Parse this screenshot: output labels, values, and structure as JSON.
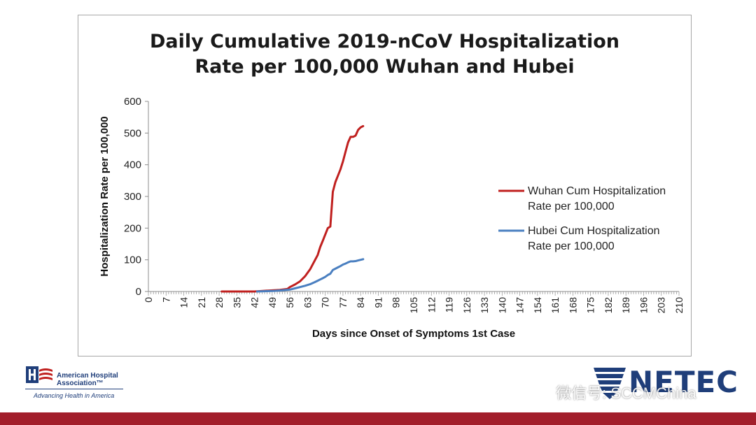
{
  "chart_data": {
    "type": "line",
    "title_lines": [
      "Daily Cumulative 2019-nCoV Hospitalization",
      "Rate per 100,000 Wuhan and Hubei"
    ],
    "xlabel": "Days since Onset of Symptoms 1st Case",
    "ylabel": "Hospitalization  Rate per 100,000",
    "xlim": [
      0,
      210
    ],
    "ylim": [
      0,
      600
    ],
    "xticks": [
      0,
      7,
      14,
      21,
      28,
      35,
      42,
      49,
      56,
      63,
      70,
      77,
      84,
      91,
      98,
      105,
      112,
      119,
      126,
      133,
      140,
      147,
      154,
      161,
      168,
      175,
      182,
      189,
      196,
      203,
      210
    ],
    "yticks": [
      0,
      100,
      200,
      300,
      400,
      500,
      600
    ],
    "grid": false,
    "legend_position": "right",
    "series": [
      {
        "name": "Wuhan Cum Hospitalization Rate per 100,000",
        "legend_lines": [
          "Wuhan Cum Hospitalization",
          "Rate per 100,000"
        ],
        "color": "#c0201f",
        "x": [
          29,
          35,
          42,
          48,
          52,
          55,
          56,
          58,
          60,
          62,
          64,
          66,
          67,
          68,
          69,
          70,
          71,
          72,
          73,
          74,
          75,
          76,
          77,
          78,
          79,
          80,
          81,
          82,
          83,
          84,
          85
        ],
        "y": [
          0,
          0,
          0,
          3,
          5,
          8,
          14,
          22,
          32,
          48,
          70,
          100,
          115,
          140,
          160,
          180,
          200,
          205,
          315,
          345,
          365,
          385,
          410,
          440,
          470,
          488,
          488,
          492,
          510,
          518,
          522
        ]
      },
      {
        "name": "Hubei Cum Hospitalization Rate per 100,000",
        "legend_lines": [
          "Hubei Cum Hospitalization",
          "Rate per 100,000"
        ],
        "color": "#4a7fc0",
        "x": [
          43,
          47,
          50,
          53,
          56,
          58,
          60,
          62,
          64,
          66,
          67,
          68,
          69,
          70,
          71,
          72,
          73,
          74,
          75,
          76,
          77,
          78,
          79,
          80,
          81,
          82,
          83,
          84,
          85
        ],
        "y": [
          0,
          1,
          2,
          4,
          6,
          10,
          14,
          18,
          23,
          30,
          34,
          38,
          42,
          46,
          52,
          56,
          68,
          72,
          76,
          80,
          85,
          88,
          92,
          95,
          95,
          96,
          98,
          100,
          102
        ]
      }
    ]
  },
  "footer": {
    "aha_name_lines": [
      "American Hospital",
      "Association™"
    ],
    "aha_tagline": "Advancing Health in America",
    "netec_name": "NETEC",
    "watermark": "微信号: SCCMChina"
  }
}
